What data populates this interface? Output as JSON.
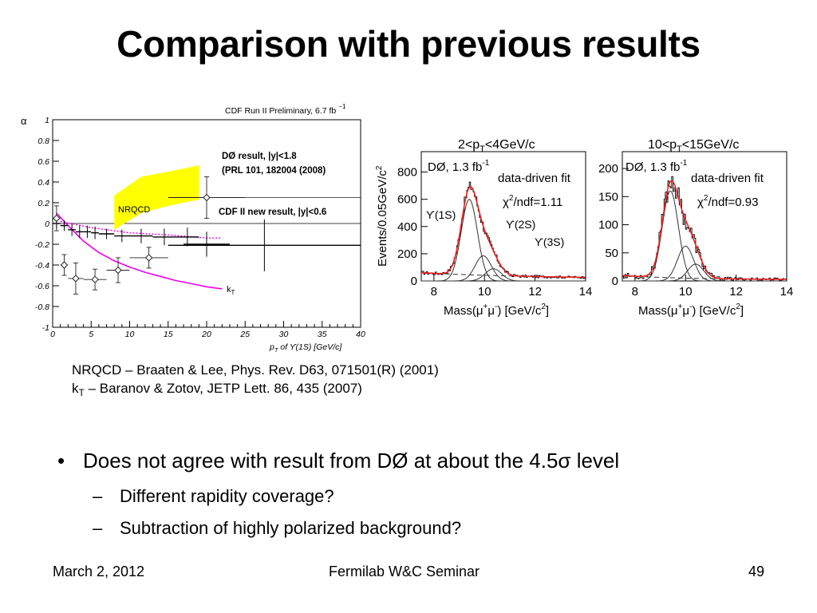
{
  "slide": {
    "title": "Comparison with previous results",
    "references": [
      {
        "text": "NRQCD – Braaten & Lee, Phys. Rev. D63, 071501(R) (2001)"
      },
      {
        "prefix": "k",
        "sub": "T",
        "text": " – Baranov & Zotov, JETP Lett. 86, 435 (2007)"
      }
    ],
    "bullets": [
      {
        "level": 1,
        "marker": "•",
        "text": "Does not agree with result from DØ at about the 4.5σ level"
      },
      {
        "level": 2,
        "marker": "–",
        "text": "Different rapidity coverage?"
      },
      {
        "level": 2,
        "marker": "–",
        "text": "Subtraction of highly polarized background?"
      }
    ],
    "footer": {
      "date": "March 2, 2012",
      "center": "Fermilab W&C Seminar",
      "page": "49"
    }
  },
  "chart_data": [
    {
      "type": "scatter",
      "header": "CDF Run II Preliminary, 6.7 fb",
      "header_sup": "−1",
      "ylabel": "α",
      "xlabel": "p",
      "xlabel_sub": "T",
      "xlabel_rest": " of ϒ(1S) [GeV/c]",
      "xlim": [
        0,
        40
      ],
      "ylim": [
        -1,
        1
      ],
      "xticks": [
        0,
        5,
        10,
        15,
        20,
        25,
        30,
        35,
        40
      ],
      "yticks": [
        1,
        0.8,
        0.6,
        0.4,
        0.2,
        0,
        -0.2,
        -0.4,
        -0.6,
        -0.8,
        -1
      ],
      "annotations": {
        "d0": "DØ result, |y|<1.8",
        "d0_ref": "(PRL 101, 182004 (2008)",
        "cdf": "CDF II new result, |y|<0.6",
        "nrqcd": "NRQCD",
        "kt": "k",
        "kt_sub": "T"
      },
      "colors": {
        "nrqcd_band": "#ffff00",
        "kt_curve": "#ee00ee",
        "cdf": "#000000",
        "d0": "#000000"
      },
      "nrqcd_band": {
        "x": [
          8,
          11.5,
          15,
          19
        ],
        "upper": [
          0.27,
          0.45,
          0.5,
          0.56
        ],
        "lower": [
          -0.06,
          0.1,
          0.17,
          0.23
        ]
      },
      "kt_curve": {
        "x": [
          0.5,
          2,
          4,
          6,
          8,
          10,
          12,
          14,
          16,
          18,
          20,
          22
        ],
        "y": [
          0.1,
          -0.02,
          -0.17,
          -0.28,
          -0.36,
          -0.42,
          -0.47,
          -0.51,
          -0.55,
          -0.58,
          -0.61,
          -0.63
        ]
      },
      "kt_dotted": {
        "x": [
          1,
          5,
          10,
          15,
          20,
          22
        ],
        "y": [
          0.02,
          -0.04,
          -0.09,
          -0.11,
          -0.14,
          -0.14
        ]
      },
      "cdf_points": [
        {
          "x": 0.5,
          "xerr": 0.5,
          "y": 0.0,
          "yerr": 0.05
        },
        {
          "x": 1.5,
          "xerr": 0.5,
          "y": -0.02,
          "yerr": 0.05
        },
        {
          "x": 2.5,
          "xerr": 0.5,
          "y": -0.06,
          "yerr": 0.06
        },
        {
          "x": 3.5,
          "xerr": 0.5,
          "y": -0.08,
          "yerr": 0.06
        },
        {
          "x": 4.5,
          "xerr": 0.5,
          "y": -0.08,
          "yerr": 0.06
        },
        {
          "x": 5.5,
          "xerr": 0.5,
          "y": -0.09,
          "yerr": 0.06
        },
        {
          "x": 7,
          "xerr": 1,
          "y": -0.1,
          "yerr": 0.05
        },
        {
          "x": 9,
          "xerr": 1,
          "y": -0.12,
          "yerr": 0.06
        },
        {
          "x": 11.5,
          "xerr": 1.5,
          "y": -0.12,
          "yerr": 0.07
        },
        {
          "x": 14.5,
          "xerr": 1.5,
          "y": -0.13,
          "yerr": 0.08
        },
        {
          "x": 17.5,
          "xerr": 1.5,
          "y": -0.13,
          "yerr": 0.09
        },
        {
          "x": 20,
          "xerr": 3,
          "y": -0.2,
          "yerr": 0.12
        },
        {
          "x": 27.5,
          "xerr": 12.5,
          "y": -0.21,
          "yerr": 0.25
        }
      ],
      "d0_points": [
        {
          "x": 0.5,
          "xerr": 0.5,
          "y": 0.05,
          "yerr": 0.12
        },
        {
          "x": 1.5,
          "xerr": 0.5,
          "y": -0.4,
          "yerr": 0.1
        },
        {
          "x": 3,
          "xerr": 1,
          "y": -0.53,
          "yerr": 0.15
        },
        {
          "x": 5.5,
          "xerr": 1.5,
          "y": -0.54,
          "yerr": 0.1
        },
        {
          "x": 8.5,
          "xerr": 1.5,
          "y": -0.45,
          "yerr": 0.12
        },
        {
          "x": 12.5,
          "xerr": 2.5,
          "y": -0.33,
          "yerr": 0.1
        },
        {
          "x": 20,
          "xerr": 5,
          "y": 0.25,
          "yerr": 0.2
        }
      ]
    },
    {
      "type": "bar",
      "title_parts": [
        "2<p",
        "T",
        "<4GeV/c"
      ],
      "ylabel": "Events/0.05GeV/c",
      "ylabel_sup": "2",
      "xlabel": "Mass(μ",
      "xlabel_rest": "μ",
      "xlabel_unit": ") [GeV/c",
      "xlabel_sup": "2",
      "legend": "DØ, 1.3 fb",
      "legend_sup": "-1",
      "fit_label": "data-driven fit",
      "chi2": "χ",
      "chi2_rest": "/ndf=1.11",
      "peaks": {
        "u1": "ϒ(1S)",
        "u2": "ϒ(2S)",
        "u3": "ϒ(3S)"
      },
      "xlim": [
        7.5,
        14
      ],
      "ylim": [
        0,
        950
      ],
      "xticks": [
        8,
        10,
        12,
        14
      ],
      "yticks": [
        0,
        200,
        400,
        600,
        800
      ],
      "fit_params": {
        "bg_a": 40,
        "bg_b": 4.5,
        "u1_amp": 600,
        "u1_mu": 9.4,
        "u2_amp": 185,
        "u2_mu": 9.95,
        "u3_amp": 90,
        "u3_mu": 10.35,
        "sigma": 0.32
      },
      "colors": {
        "fit": "#ee2222",
        "data": "#000000"
      }
    },
    {
      "type": "bar",
      "title_parts": [
        "10<p",
        "T",
        "<15GeV/c"
      ],
      "xlabel": "Mass(μ",
      "xlabel_rest": "μ",
      "xlabel_unit": ") [GeV/c",
      "xlabel_sup": "2",
      "legend": "DØ, 1.3 fb",
      "legend_sup": "-1",
      "fit_label": "data-driven fit",
      "chi2": "χ",
      "chi2_rest": "/ndf=0.93",
      "xlim": [
        7.5,
        14
      ],
      "ylim": [
        0,
        230
      ],
      "xticks": [
        8,
        10,
        12,
        14
      ],
      "yticks": [
        0,
        50,
        100,
        150,
        200
      ],
      "fit_params": {
        "bg_a": 6,
        "bg_b": 2.5,
        "u1_amp": 160,
        "u1_mu": 9.4,
        "u2_amp": 62,
        "u2_mu": 10.0,
        "u3_amp": 30,
        "u3_mu": 10.4,
        "sigma": 0.32
      },
      "colors": {
        "fit": "#ee2222",
        "data": "#000000"
      }
    }
  ]
}
